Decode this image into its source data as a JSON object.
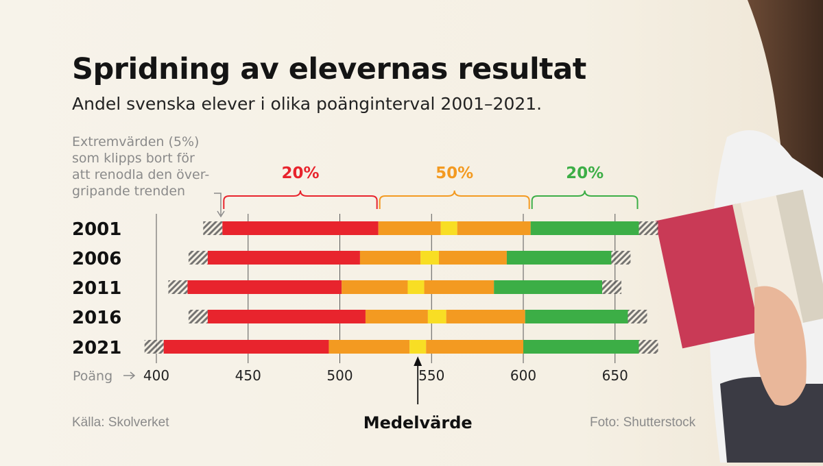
{
  "header": {
    "title": "Spridning av elevernas resultat",
    "subtitle": "Andel svenska elever i olika poänginterval 2001–2021."
  },
  "note": {
    "lines": [
      "Extremvärden (5%)",
      "som klipps bort för",
      "att renodla den över-",
      "gripande trenden"
    ]
  },
  "footer": {
    "source": "Källa: Skolverket",
    "photo_credit": "Foto: Shutterstock"
  },
  "colors": {
    "low": "#e8242d",
    "mid": "#f39a21",
    "mean": "#f8de24",
    "high": "#3cae46",
    "grid": "#555555"
  },
  "chart_data": {
    "type": "bar",
    "orientation": "horizontal-stacked-range",
    "xlabel": "Poäng",
    "xlim": [
      400,
      675
    ],
    "xticks": [
      400,
      450,
      500,
      550,
      600,
      650
    ],
    "grid": true,
    "bands": [
      {
        "label": "20%",
        "color": "low"
      },
      {
        "label": "50%",
        "color": "mid"
      },
      {
        "label": "20%",
        "color": "high"
      }
    ],
    "mean_label": "Medelvärde",
    "rows": [
      {
        "year": "2001",
        "p5": 436,
        "p25": 521,
        "mean_low": 555,
        "mean_high": 564,
        "p75": 604,
        "p95": 663
      },
      {
        "year": "2006",
        "p5": 428,
        "p25": 511,
        "mean_low": 544,
        "mean_high": 554,
        "p75": 591,
        "p95": 648
      },
      {
        "year": "2011",
        "p5": 417,
        "p25": 501,
        "mean_low": 537,
        "mean_high": 546,
        "p75": 584,
        "p95": 643
      },
      {
        "year": "2016",
        "p5": 428,
        "p25": 514,
        "mean_low": 548,
        "mean_high": 558,
        "p75": 601,
        "p95": 657
      },
      {
        "year": "2021",
        "p5": 404,
        "p25": 494,
        "mean_low": 538,
        "mean_high": 547,
        "p75": 600,
        "p95": 663
      }
    ]
  }
}
